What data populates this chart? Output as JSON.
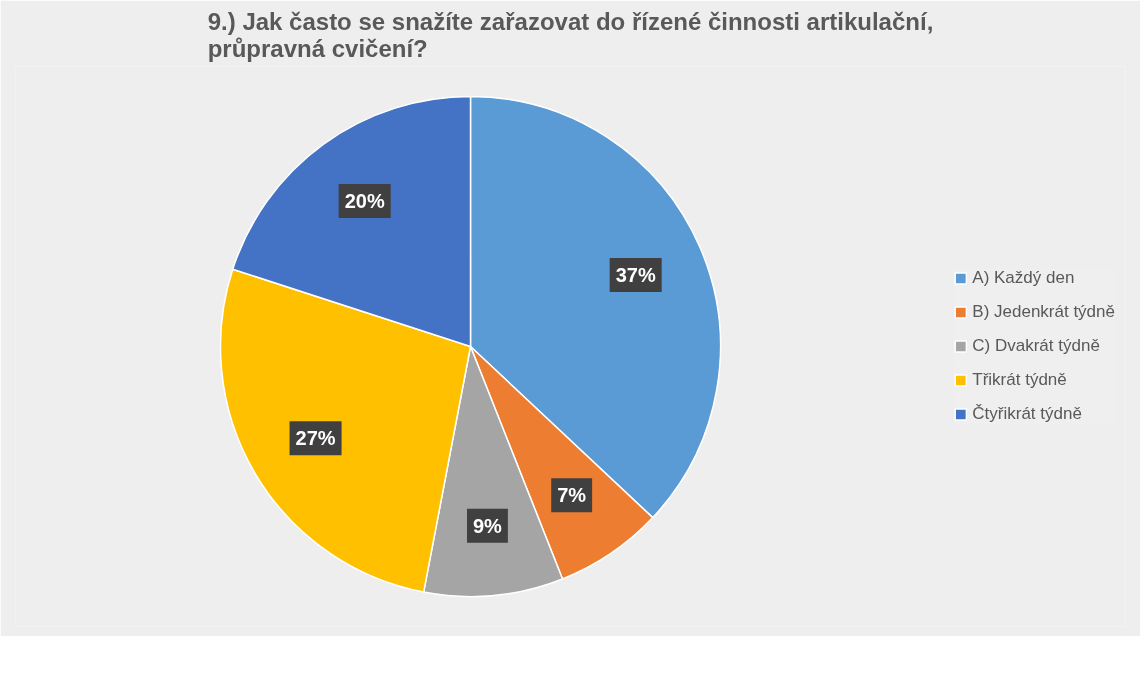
{
  "chart_data": {
    "type": "pie",
    "title": "9.) Jak často se snažíte zařazovat do řízené činnosti artikulační, průpravná cvičení?",
    "categories": [
      "A) Každý den",
      "B) Jedenkrát týdně",
      "C) Dvakrát týdně",
      "Třikrát týdně",
      "Čtyřikrát týdně"
    ],
    "values": [
      37,
      7,
      9,
      27,
      20
    ],
    "colors": [
      "#5b9bd5",
      "#ed7d31",
      "#a5a5a5",
      "#ffc000",
      "#4472c4"
    ],
    "value_labels": [
      "37%",
      "7%",
      "9%",
      "27%",
      "20%"
    ],
    "legend": "right"
  }
}
